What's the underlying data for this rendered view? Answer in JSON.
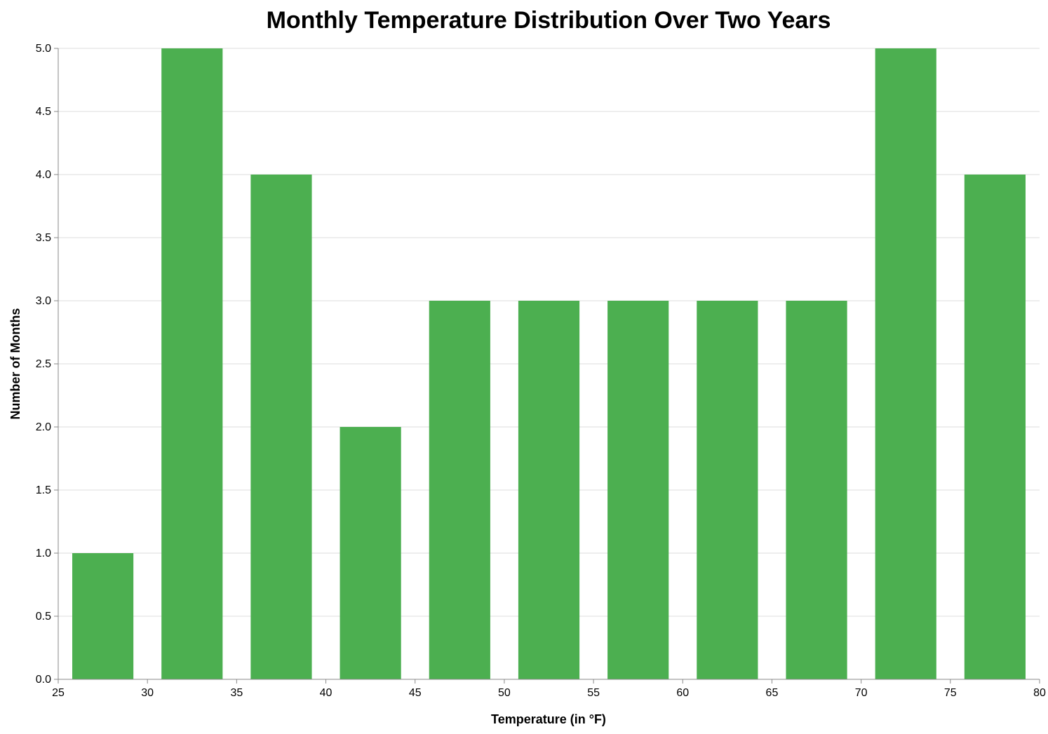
{
  "chart_data": {
    "type": "bar",
    "title": "Monthly Temperature Distribution Over Two Years",
    "xlabel": "Temperature (in °F)",
    "ylabel": "Number of Months",
    "bins": [
      {
        "start": 25,
        "end": 30,
        "count": 1
      },
      {
        "start": 30,
        "end": 35,
        "count": 5
      },
      {
        "start": 35,
        "end": 40,
        "count": 4
      },
      {
        "start": 40,
        "end": 45,
        "count": 2
      },
      {
        "start": 45,
        "end": 50,
        "count": 3
      },
      {
        "start": 50,
        "end": 55,
        "count": 3
      },
      {
        "start": 55,
        "end": 60,
        "count": 3
      },
      {
        "start": 60,
        "end": 65,
        "count": 3
      },
      {
        "start": 65,
        "end": 70,
        "count": 3
      },
      {
        "start": 70,
        "end": 75,
        "count": 5
      },
      {
        "start": 75,
        "end": 80,
        "count": 4
      }
    ],
    "xlim": [
      25,
      80
    ],
    "ylim": [
      0,
      5
    ],
    "x_ticks": [
      "25",
      "30",
      "35",
      "40",
      "45",
      "50",
      "55",
      "60",
      "65",
      "70",
      "75",
      "80"
    ],
    "y_ticks": [
      "0.0",
      "0.5",
      "1.0",
      "1.5",
      "2.0",
      "2.5",
      "3.0",
      "3.5",
      "4.0",
      "4.5",
      "5.0"
    ],
    "bar_color": "#4caf50",
    "grid": true,
    "legend": "none"
  }
}
